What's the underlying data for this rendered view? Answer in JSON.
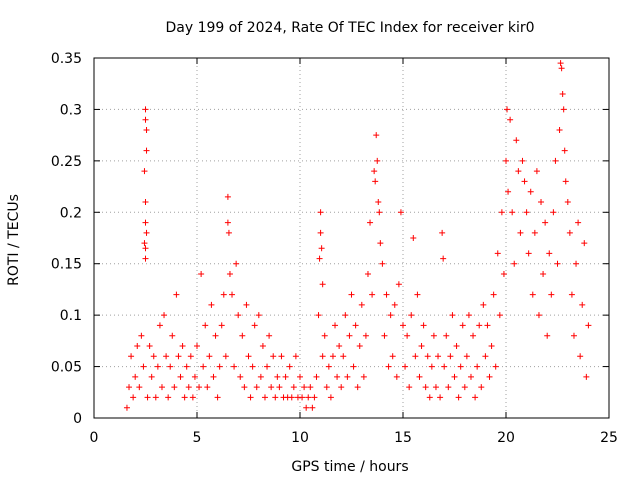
{
  "chart_data": {
    "type": "scatter",
    "title": "Day 199 of 2024, Rate Of TEC Index for receiver kir0",
    "xlabel": "GPS time / hours",
    "ylabel": "ROTI / TECUs",
    "xlim": [
      0,
      25
    ],
    "ylim": [
      0,
      0.35
    ],
    "xticks": [
      0,
      5,
      10,
      15,
      20,
      25
    ],
    "xtick_labels": [
      "0",
      "5",
      "10",
      "15",
      "20",
      "25"
    ],
    "yticks": [
      0,
      0.05,
      0.1,
      0.15,
      0.2,
      0.25,
      0.3,
      0.35
    ],
    "ytick_labels": [
      "0",
      "0.05",
      "0.1",
      "0.15",
      "0.2",
      "0.25",
      "0.3",
      "0.35"
    ],
    "grid": true,
    "marker": "+",
    "marker_color": "#ff0000",
    "series": [
      {
        "name": "ROTI",
        "points": [
          [
            1.6,
            0.01
          ],
          [
            1.7,
            0.03
          ],
          [
            1.8,
            0.06
          ],
          [
            1.9,
            0.02
          ],
          [
            2.0,
            0.04
          ],
          [
            2.1,
            0.07
          ],
          [
            2.2,
            0.03
          ],
          [
            2.3,
            0.08
          ],
          [
            2.4,
            0.05
          ],
          [
            2.5,
            0.3
          ],
          [
            2.5,
            0.29
          ],
          [
            2.55,
            0.28
          ],
          [
            2.55,
            0.26
          ],
          [
            2.45,
            0.24
          ],
          [
            2.5,
            0.21
          ],
          [
            2.5,
            0.19
          ],
          [
            2.55,
            0.18
          ],
          [
            2.45,
            0.17
          ],
          [
            2.5,
            0.165
          ],
          [
            2.5,
            0.155
          ],
          [
            2.6,
            0.02
          ],
          [
            2.7,
            0.07
          ],
          [
            2.8,
            0.04
          ],
          [
            2.9,
            0.06
          ],
          [
            3.0,
            0.02
          ],
          [
            3.1,
            0.05
          ],
          [
            3.2,
            0.09
          ],
          [
            3.3,
            0.03
          ],
          [
            3.4,
            0.1
          ],
          [
            3.5,
            0.06
          ],
          [
            3.6,
            0.02
          ],
          [
            3.7,
            0.05
          ],
          [
            3.8,
            0.08
          ],
          [
            3.9,
            0.03
          ],
          [
            4.0,
            0.12
          ],
          [
            4.1,
            0.06
          ],
          [
            4.2,
            0.04
          ],
          [
            4.3,
            0.07
          ],
          [
            4.4,
            0.02
          ],
          [
            4.5,
            0.05
          ],
          [
            4.6,
            0.03
          ],
          [
            4.7,
            0.06
          ],
          [
            4.8,
            0.02
          ],
          [
            4.9,
            0.04
          ],
          [
            5.0,
            0.07
          ],
          [
            5.1,
            0.03
          ],
          [
            5.2,
            0.14
          ],
          [
            5.3,
            0.05
          ],
          [
            5.4,
            0.09
          ],
          [
            5.5,
            0.03
          ],
          [
            5.6,
            0.06
          ],
          [
            5.7,
            0.11
          ],
          [
            5.8,
            0.04
          ],
          [
            5.9,
            0.08
          ],
          [
            6.0,
            0.02
          ],
          [
            6.1,
            0.05
          ],
          [
            6.2,
            0.09
          ],
          [
            6.3,
            0.12
          ],
          [
            6.4,
            0.06
          ],
          [
            6.5,
            0.215
          ],
          [
            6.5,
            0.19
          ],
          [
            6.55,
            0.18
          ],
          [
            6.6,
            0.14
          ],
          [
            6.7,
            0.12
          ],
          [
            6.8,
            0.05
          ],
          [
            6.9,
            0.15
          ],
          [
            7.0,
            0.1
          ],
          [
            7.1,
            0.04
          ],
          [
            7.2,
            0.08
          ],
          [
            7.3,
            0.03
          ],
          [
            7.4,
            0.11
          ],
          [
            7.5,
            0.06
          ],
          [
            7.6,
            0.02
          ],
          [
            7.7,
            0.05
          ],
          [
            7.8,
            0.09
          ],
          [
            7.9,
            0.03
          ],
          [
            8.0,
            0.1
          ],
          [
            8.1,
            0.04
          ],
          [
            8.2,
            0.07
          ],
          [
            8.3,
            0.02
          ],
          [
            8.4,
            0.05
          ],
          [
            8.5,
            0.08
          ],
          [
            8.6,
            0.03
          ],
          [
            8.7,
            0.06
          ],
          [
            8.8,
            0.02
          ],
          [
            8.9,
            0.04
          ],
          [
            9.0,
            0.03
          ],
          [
            9.1,
            0.06
          ],
          [
            9.2,
            0.02
          ],
          [
            9.3,
            0.04
          ],
          [
            9.4,
            0.02
          ],
          [
            9.5,
            0.05
          ],
          [
            9.6,
            0.02
          ],
          [
            9.7,
            0.03
          ],
          [
            9.8,
            0.06
          ],
          [
            9.9,
            0.02
          ],
          [
            10.0,
            0.04
          ],
          [
            10.1,
            0.02
          ],
          [
            10.2,
            0.03
          ],
          [
            10.3,
            0.01
          ],
          [
            10.4,
            0.02
          ],
          [
            10.5,
            0.03
          ],
          [
            10.6,
            0.01
          ],
          [
            10.7,
            0.02
          ],
          [
            10.8,
            0.04
          ],
          [
            10.9,
            0.1
          ],
          [
            11.0,
            0.2
          ],
          [
            11.0,
            0.18
          ],
          [
            11.05,
            0.165
          ],
          [
            10.95,
            0.155
          ],
          [
            11.1,
            0.13
          ],
          [
            11.1,
            0.06
          ],
          [
            11.2,
            0.08
          ],
          [
            11.3,
            0.03
          ],
          [
            11.4,
            0.05
          ],
          [
            11.5,
            0.02
          ],
          [
            11.6,
            0.06
          ],
          [
            11.7,
            0.09
          ],
          [
            11.8,
            0.04
          ],
          [
            11.9,
            0.07
          ],
          [
            12.0,
            0.03
          ],
          [
            12.1,
            0.06
          ],
          [
            12.2,
            0.1
          ],
          [
            12.3,
            0.04
          ],
          [
            12.4,
            0.08
          ],
          [
            12.5,
            0.12
          ],
          [
            12.6,
            0.05
          ],
          [
            12.7,
            0.09
          ],
          [
            12.8,
            0.03
          ],
          [
            12.9,
            0.07
          ],
          [
            13.0,
            0.11
          ],
          [
            13.1,
            0.04
          ],
          [
            13.2,
            0.08
          ],
          [
            13.3,
            0.14
          ],
          [
            13.4,
            0.19
          ],
          [
            13.5,
            0.12
          ],
          [
            13.6,
            0.24
          ],
          [
            13.65,
            0.23
          ],
          [
            13.7,
            0.275
          ],
          [
            13.75,
            0.25
          ],
          [
            13.8,
            0.21
          ],
          [
            13.85,
            0.2
          ],
          [
            13.9,
            0.17
          ],
          [
            14.0,
            0.15
          ],
          [
            14.1,
            0.08
          ],
          [
            14.2,
            0.12
          ],
          [
            14.3,
            0.05
          ],
          [
            14.4,
            0.1
          ],
          [
            14.5,
            0.06
          ],
          [
            14.6,
            0.11
          ],
          [
            14.7,
            0.04
          ],
          [
            14.8,
            0.13
          ],
          [
            14.9,
            0.2
          ],
          [
            15.0,
            0.09
          ],
          [
            15.1,
            0.05
          ],
          [
            15.2,
            0.08
          ],
          [
            15.3,
            0.03
          ],
          [
            15.4,
            0.1
          ],
          [
            15.5,
            0.175
          ],
          [
            15.6,
            0.06
          ],
          [
            15.7,
            0.12
          ],
          [
            15.8,
            0.04
          ],
          [
            15.9,
            0.07
          ],
          [
            16.0,
            0.09
          ],
          [
            16.1,
            0.03
          ],
          [
            16.2,
            0.06
          ],
          [
            16.3,
            0.02
          ],
          [
            16.4,
            0.05
          ],
          [
            16.5,
            0.08
          ],
          [
            16.6,
            0.03
          ],
          [
            16.7,
            0.06
          ],
          [
            16.8,
            0.02
          ],
          [
            16.9,
            0.18
          ],
          [
            16.95,
            0.155
          ],
          [
            17.0,
            0.05
          ],
          [
            17.1,
            0.08
          ],
          [
            17.2,
            0.03
          ],
          [
            17.3,
            0.06
          ],
          [
            17.4,
            0.1
          ],
          [
            17.5,
            0.04
          ],
          [
            17.6,
            0.07
          ],
          [
            17.7,
            0.02
          ],
          [
            17.8,
            0.05
          ],
          [
            17.9,
            0.09
          ],
          [
            18.0,
            0.03
          ],
          [
            18.1,
            0.06
          ],
          [
            18.2,
            0.1
          ],
          [
            18.3,
            0.04
          ],
          [
            18.4,
            0.08
          ],
          [
            18.5,
            0.02
          ],
          [
            18.6,
            0.05
          ],
          [
            18.7,
            0.09
          ],
          [
            18.8,
            0.03
          ],
          [
            18.9,
            0.11
          ],
          [
            19.0,
            0.06
          ],
          [
            19.1,
            0.09
          ],
          [
            19.2,
            0.04
          ],
          [
            19.3,
            0.07
          ],
          [
            19.4,
            0.12
          ],
          [
            19.5,
            0.05
          ],
          [
            19.6,
            0.16
          ],
          [
            19.7,
            0.1
          ],
          [
            19.8,
            0.2
          ],
          [
            19.9,
            0.14
          ],
          [
            20.0,
            0.25
          ],
          [
            20.05,
            0.3
          ],
          [
            20.1,
            0.22
          ],
          [
            20.2,
            0.29
          ],
          [
            20.3,
            0.2
          ],
          [
            20.4,
            0.15
          ],
          [
            20.5,
            0.27
          ],
          [
            20.6,
            0.24
          ],
          [
            20.7,
            0.18
          ],
          [
            20.8,
            0.25
          ],
          [
            20.9,
            0.23
          ],
          [
            21.0,
            0.2
          ],
          [
            21.1,
            0.16
          ],
          [
            21.2,
            0.22
          ],
          [
            21.3,
            0.12
          ],
          [
            21.4,
            0.18
          ],
          [
            21.5,
            0.24
          ],
          [
            21.6,
            0.1
          ],
          [
            21.7,
            0.21
          ],
          [
            21.8,
            0.14
          ],
          [
            21.9,
            0.19
          ],
          [
            22.0,
            0.08
          ],
          [
            22.1,
            0.16
          ],
          [
            22.2,
            0.12
          ],
          [
            22.3,
            0.2
          ],
          [
            22.4,
            0.25
          ],
          [
            22.5,
            0.15
          ],
          [
            22.6,
            0.28
          ],
          [
            22.65,
            0.345
          ],
          [
            22.7,
            0.34
          ],
          [
            22.75,
            0.315
          ],
          [
            22.8,
            0.3
          ],
          [
            22.85,
            0.26
          ],
          [
            22.9,
            0.23
          ],
          [
            23.0,
            0.21
          ],
          [
            23.1,
            0.18
          ],
          [
            23.2,
            0.12
          ],
          [
            23.3,
            0.08
          ],
          [
            23.4,
            0.15
          ],
          [
            23.5,
            0.19
          ],
          [
            23.6,
            0.06
          ],
          [
            23.7,
            0.11
          ],
          [
            23.8,
            0.17
          ],
          [
            23.9,
            0.04
          ],
          [
            24.0,
            0.09
          ]
        ]
      }
    ]
  }
}
